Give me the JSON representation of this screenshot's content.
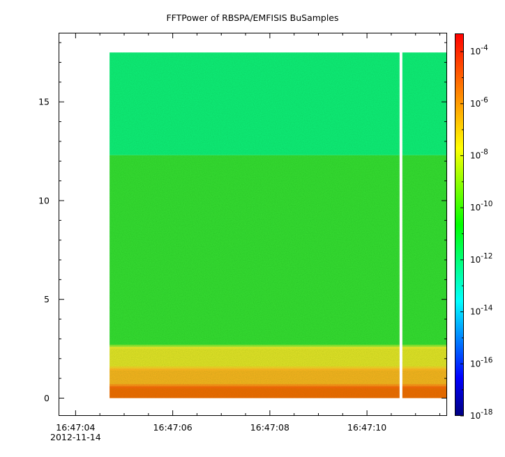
{
  "chart_data": {
    "type": "heatmap",
    "title": "FFTPower of RBSPA/EMFISIS  BuSamples",
    "xlabel": "",
    "ylabel": "",
    "x_axis": {
      "ticks": [
        "16:47:04",
        "16:47:06",
        "16:47:08",
        "16:47:10"
      ],
      "tick_seconds": [
        4,
        6,
        8,
        10
      ],
      "range_seconds": [
        3.65,
        11.65
      ],
      "date_label": "2012-11-14"
    },
    "y_axis": {
      "range": [
        -0.9,
        18.5
      ],
      "ticks": [
        0,
        5,
        10,
        15
      ]
    },
    "colorbar": {
      "scale": "log",
      "range_exponents": [
        -18,
        -3.3
      ],
      "tick_base": "10",
      "tick_exponents": [
        "-18",
        "-16",
        "-14",
        "-12",
        "-10",
        "-8",
        "-6",
        "-4"
      ],
      "colormap": [
        "#00007f",
        "#0000ff",
        "#0080ff",
        "#00ffff",
        "#00ff80",
        "#00ff00",
        "#80ff00",
        "#ffff00",
        "#ffaa00",
        "#ff5500",
        "#ff0000"
      ]
    },
    "data_extent": {
      "x_start_seconds": 4.7,
      "x_end_seconds": 11.65,
      "y_min": 0,
      "y_max": 17.5,
      "gap_seconds": 10.7
    },
    "bands": [
      {
        "y_from": 12.3,
        "y_to": 17.5,
        "color": "#14f27a"
      },
      {
        "y_from": 2.6,
        "y_to": 12.3,
        "color": "#38e035"
      },
      {
        "y_from": 1.5,
        "y_to": 2.6,
        "color": "#e6e62a"
      },
      {
        "y_from": 0.6,
        "y_to": 1.5,
        "color": "#fbb523"
      },
      {
        "y_from": 0.0,
        "y_to": 0.6,
        "color": "#f5650e"
      }
    ]
  }
}
